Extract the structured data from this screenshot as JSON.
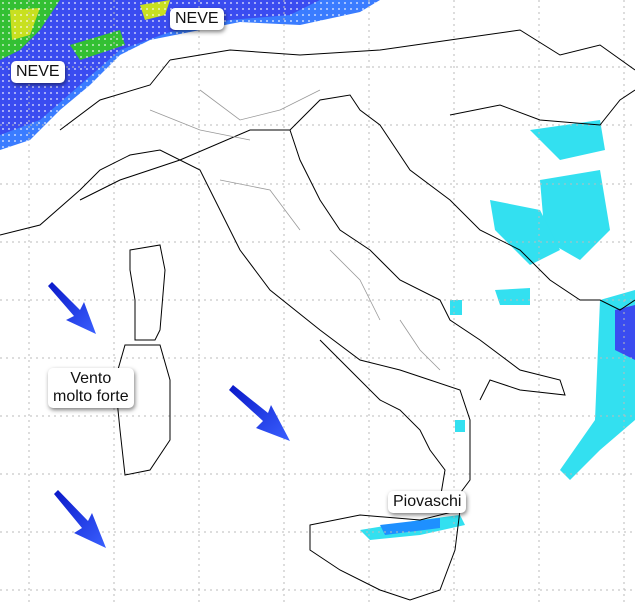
{
  "labels": {
    "snow_north": "NEVE",
    "snow_west": "NEVE",
    "wind_line1": "Vento",
    "wind_line2": "molto forte",
    "showers": "Piovaschi"
  },
  "icons": [
    "wind-arrow-icon",
    "wind-arrow-icon",
    "wind-arrow-icon"
  ],
  "colors": {
    "snow_dark": "#3a4cf0",
    "snow_mid": "#1e90ff",
    "rain_light": "#33e0f0",
    "rain_green": "#33c033",
    "rain_yellow": "#c8e020",
    "arrow": "#1a2cf0",
    "border": "#000000",
    "region_border": "#888888"
  }
}
